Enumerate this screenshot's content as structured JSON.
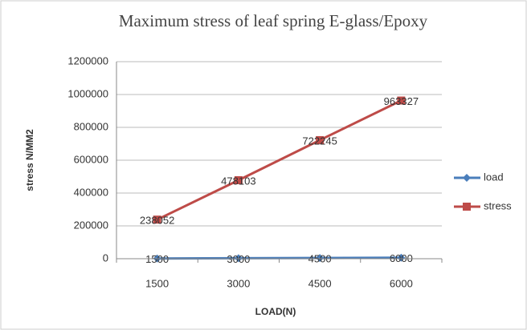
{
  "chart_data": {
    "type": "line",
    "title": "Maximum stress of leaf spring E-glass/Epoxy",
    "x_label": "LOAD(N)",
    "y_label": "stress N/MM2",
    "categories": [
      "1500",
      "3000",
      "4500",
      "6000"
    ],
    "series": [
      {
        "name": "load",
        "color": "#4a7ebb",
        "marker": "diamond",
        "values": [
          1500,
          3000,
          4500,
          6000
        ]
      },
      {
        "name": "stress",
        "color": "#be4b48",
        "marker": "square",
        "values": [
          238052,
          478103,
          722245,
          963327
        ]
      }
    ],
    "ylim": [
      0,
      1200000
    ],
    "yticks": [
      0,
      200000,
      400000,
      600000,
      800000,
      1000000,
      1200000
    ],
    "grid": true,
    "legend": "right"
  }
}
